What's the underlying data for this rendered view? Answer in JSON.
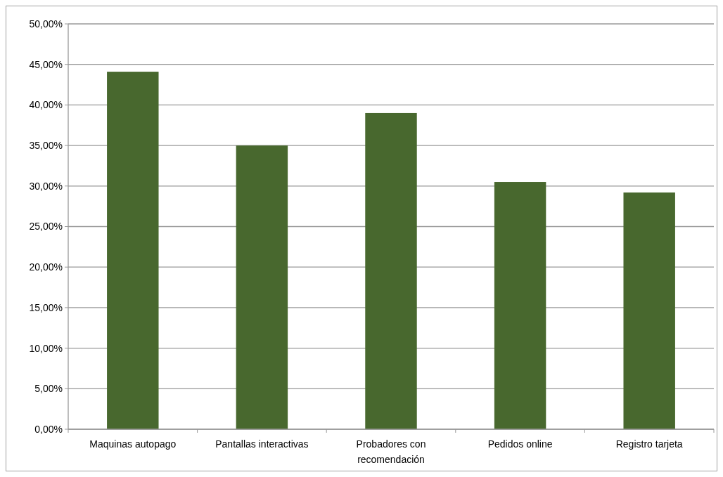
{
  "chart_data": {
    "type": "bar",
    "categories": [
      "Maquinas autopago",
      "Pantallas interactivas",
      "Probadores con recomendación",
      "Pedidos online",
      "Registro tarjeta"
    ],
    "values": [
      44.1,
      35.0,
      39.0,
      30.5,
      29.2
    ],
    "color": "#48682e",
    "ylim": [
      0,
      50
    ],
    "yticks": [
      {
        "value": 0,
        "label": "0,00%"
      },
      {
        "value": 5,
        "label": "5,00%"
      },
      {
        "value": 10,
        "label": "10,00%"
      },
      {
        "value": 15,
        "label": "15,00%"
      },
      {
        "value": 20,
        "label": "20,00%"
      },
      {
        "value": 25,
        "label": "25,00%"
      },
      {
        "value": 30,
        "label": "30,00%"
      },
      {
        "value": 35,
        "label": "35,00%"
      },
      {
        "value": 40,
        "label": "40,00%"
      },
      {
        "value": 45,
        "label": "45,00%"
      },
      {
        "value": 50,
        "label": "50,00%"
      }
    ],
    "grid": "y"
  }
}
